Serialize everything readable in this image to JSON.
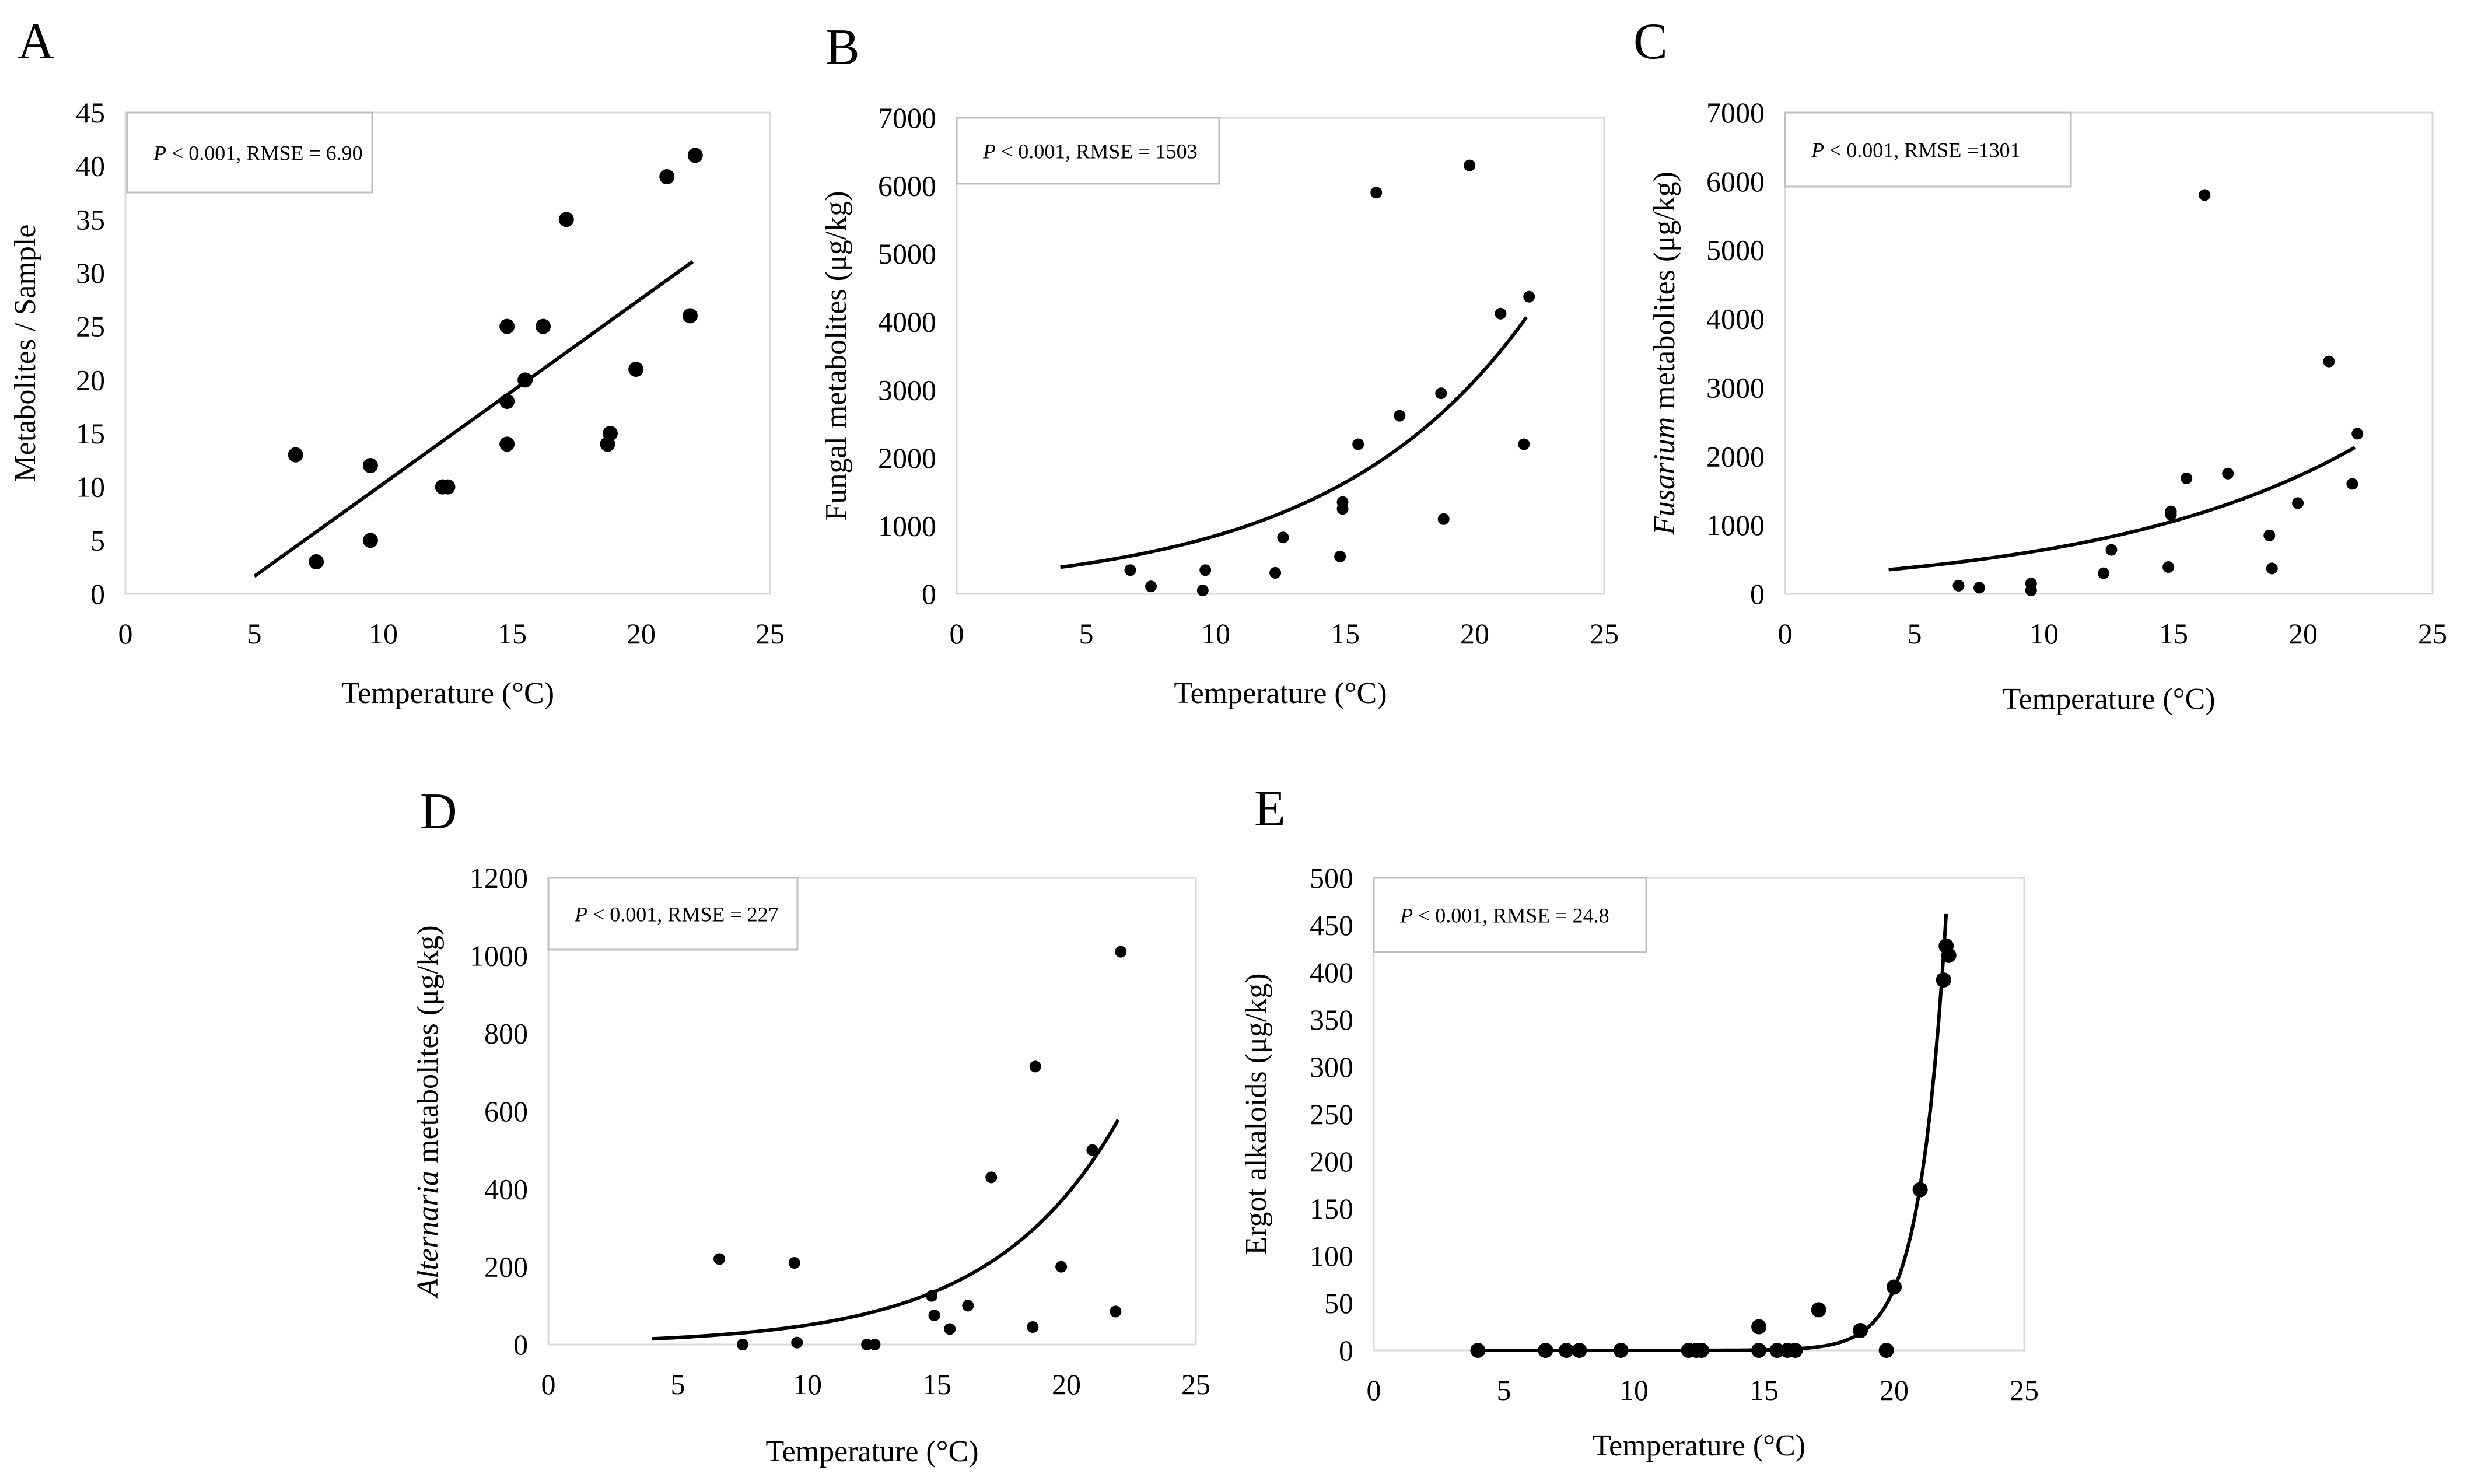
{
  "chart_data": [
    {
      "panel": "A",
      "type": "scatter",
      "xlabel": "Temperature (°C)",
      "ylabel_parts": [
        {
          "text": "Metabolites / Sample",
          "italic": false
        }
      ],
      "annotation": {
        "p": "P",
        "rest": " < 0.001, RMSE = 6.90"
      },
      "xlim": [
        0,
        25
      ],
      "ylim": [
        0,
        45
      ],
      "xticks": [
        0,
        5,
        10,
        15,
        20,
        25
      ],
      "yticks": [
        0,
        5,
        10,
        15,
        20,
        25,
        30,
        35,
        40,
        45
      ],
      "points": [
        [
          6.6,
          13
        ],
        [
          7.4,
          3
        ],
        [
          9.5,
          12
        ],
        [
          9.5,
          5
        ],
        [
          12.3,
          10
        ],
        [
          12.5,
          10
        ],
        [
          14.8,
          25
        ],
        [
          14.8,
          18
        ],
        [
          14.8,
          14
        ],
        [
          15.5,
          20
        ],
        [
          16.2,
          25
        ],
        [
          17.1,
          35
        ],
        [
          18.7,
          14
        ],
        [
          18.8,
          15
        ],
        [
          19.8,
          21
        ],
        [
          21,
          39
        ],
        [
          21.9,
          26
        ],
        [
          22.1,
          41
        ]
      ],
      "fit": {
        "model": "linear",
        "slope": 1.73,
        "intercept": -7.0,
        "x_range": [
          5,
          22
        ]
      }
    },
    {
      "panel": "B",
      "type": "scatter",
      "xlabel": "Temperature (°C)",
      "ylabel_parts": [
        {
          "text": "Fungal metabolites (μg/kg)",
          "italic": false
        }
      ],
      "annotation": {
        "p": "P",
        "rest": " < 0.001, RMSE = 1503"
      },
      "xlim": [
        0,
        25
      ],
      "ylim": [
        0,
        7000
      ],
      "xticks": [
        0,
        5,
        10,
        15,
        20,
        25
      ],
      "yticks": [
        0,
        1000,
        2000,
        3000,
        4000,
        5000,
        6000,
        7000
      ],
      "points": [
        [
          6.7,
          350
        ],
        [
          7.5,
          110
        ],
        [
          9.5,
          50
        ],
        [
          9.6,
          350
        ],
        [
          12.3,
          310
        ],
        [
          12.6,
          830
        ],
        [
          14.8,
          550
        ],
        [
          14.9,
          1250
        ],
        [
          14.9,
          1350
        ],
        [
          15.5,
          2200
        ],
        [
          16.2,
          5900
        ],
        [
          17.1,
          2620
        ],
        [
          18.7,
          2950
        ],
        [
          18.8,
          1100
        ],
        [
          19.8,
          6300
        ],
        [
          21,
          4120
        ],
        [
          21.9,
          2200
        ],
        [
          22.1,
          4370
        ]
      ],
      "fit": {
        "model": "exponential",
        "a": 233,
        "b": 0.13,
        "x_range": [
          4,
          22
        ]
      }
    },
    {
      "panel": "C",
      "type": "scatter",
      "xlabel": "Temperature (°C)",
      "ylabel_parts": [
        {
          "text": "Fusarium",
          "italic": true
        },
        {
          "text": " metabolites (μg/kg)",
          "italic": false
        }
      ],
      "annotation": {
        "p": "P",
        "rest": " < 0.001, RMSE =1301"
      },
      "xlim": [
        0,
        25
      ],
      "ylim": [
        0,
        7000
      ],
      "xticks": [
        0,
        5,
        10,
        15,
        20,
        25
      ],
      "yticks": [
        0,
        1000,
        2000,
        3000,
        4000,
        5000,
        6000,
        7000
      ],
      "points": [
        [
          6.7,
          120
        ],
        [
          7.5,
          90
        ],
        [
          9.5,
          50
        ],
        [
          9.5,
          150
        ],
        [
          12.3,
          300
        ],
        [
          12.6,
          640
        ],
        [
          14.8,
          390
        ],
        [
          14.9,
          1150
        ],
        [
          14.9,
          1200
        ],
        [
          15.5,
          1680
        ],
        [
          16.2,
          5800
        ],
        [
          17.1,
          1750
        ],
        [
          18.7,
          850
        ],
        [
          18.8,
          370
        ],
        [
          19.8,
          1320
        ],
        [
          21,
          3380
        ],
        [
          21.9,
          1600
        ],
        [
          22.1,
          2330
        ]
      ],
      "fit": {
        "model": "exponential",
        "a": 236,
        "b": 0.1,
        "x_range": [
          4,
          22
        ]
      }
    },
    {
      "panel": "D",
      "type": "scatter",
      "xlabel": "Temperature (°C)",
      "ylabel_parts": [
        {
          "text": "Alternaria",
          "italic": true
        },
        {
          "text": " metabolites (μg/kg)",
          "italic": false
        }
      ],
      "annotation": {
        "p": "P",
        "rest": " < 0.001, RMSE = 227"
      },
      "xlim": [
        0,
        25
      ],
      "ylim": [
        0,
        1200
      ],
      "xticks": [
        0,
        5,
        10,
        15,
        20,
        25
      ],
      "yticks": [
        0,
        200,
        400,
        600,
        800,
        1000,
        1200
      ],
      "points": [
        [
          6.6,
          220
        ],
        [
          7.5,
          0
        ],
        [
          9.5,
          210
        ],
        [
          9.6,
          5
        ],
        [
          12.3,
          0
        ],
        [
          12.6,
          0
        ],
        [
          14.8,
          125
        ],
        [
          14.9,
          75
        ],
        [
          15.5,
          40
        ],
        [
          16.2,
          100
        ],
        [
          17.1,
          430
        ],
        [
          18.7,
          45
        ],
        [
          18.8,
          715
        ],
        [
          19.8,
          200
        ],
        [
          21,
          500
        ],
        [
          21.9,
          85
        ],
        [
          22.1,
          1010
        ]
      ],
      "fit": {
        "model": "exponential",
        "a": 6.5,
        "b": 0.204,
        "x_range": [
          4,
          22
        ]
      }
    },
    {
      "panel": "E",
      "type": "scatter",
      "xlabel": "Temperature (°C)",
      "ylabel_parts": [
        {
          "text": "Ergot alkaloids (μg/kg)",
          "italic": false
        }
      ],
      "annotation": {
        "p": "P",
        "rest": " < 0.001, RMSE = 24.8"
      },
      "xlim": [
        0,
        25
      ],
      "ylim": [
        0,
        500
      ],
      "xticks": [
        0,
        5,
        10,
        15,
        20,
        25
      ],
      "yticks": [
        0,
        50,
        100,
        150,
        200,
        250,
        300,
        350,
        400,
        450,
        500
      ],
      "points": [
        [
          4,
          0
        ],
        [
          6.6,
          0
        ],
        [
          7.4,
          0
        ],
        [
          7.9,
          0
        ],
        [
          9.5,
          0
        ],
        [
          12.1,
          0
        ],
        [
          12.4,
          0
        ],
        [
          12.6,
          0
        ],
        [
          14.8,
          25
        ],
        [
          14.8,
          0
        ],
        [
          15.5,
          0
        ],
        [
          15.9,
          0
        ],
        [
          16.2,
          0
        ],
        [
          17.1,
          43
        ],
        [
          18.7,
          21
        ],
        [
          19.7,
          0
        ],
        [
          20,
          67
        ],
        [
          21,
          170
        ],
        [
          21.9,
          392
        ],
        [
          22.0,
          428
        ],
        [
          22.1,
          418
        ]
      ],
      "fit": {
        "model": "exponential",
        "a": 2e-07,
        "b": 0.98,
        "x_range": [
          4,
          22
        ]
      }
    }
  ]
}
